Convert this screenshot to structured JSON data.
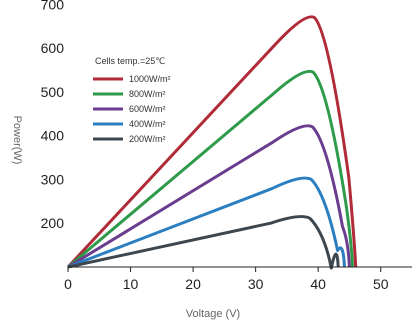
{
  "chart_data": {
    "type": "line",
    "xlabel": "Voltage (V)",
    "ylabel": "Power(W)",
    "xlim": [
      0,
      55
    ],
    "ylim": [
      100,
      710
    ],
    "x_ticks": [
      0,
      10,
      20,
      30,
      40,
      50
    ],
    "y_ticks": [
      200,
      300,
      400,
      500,
      600,
      700
    ],
    "grid": false,
    "legend_title": "Cells temp.=25℃",
    "legend_position": "top-left",
    "series": [
      {
        "name": "1000W/m²",
        "color": "#b02a37",
        "peak_voltage": 38.5,
        "peak_power": 676,
        "open_circuit_voltage": 46.0
      },
      {
        "name": "800W/m²",
        "color": "#2e9a4a",
        "peak_voltage": 38.3,
        "peak_power": 551,
        "open_circuit_voltage": 45.5
      },
      {
        "name": "600W/m²",
        "color": "#6a3d8f",
        "peak_voltage": 38.2,
        "peak_power": 426,
        "open_circuit_voltage": 45.0
      },
      {
        "name": "400W/m²",
        "color": "#2b7fc1",
        "peak_voltage": 38.0,
        "peak_power": 306,
        "open_circuit_voltage": 44.2
      },
      {
        "name": "200W/m²",
        "color": "#3d474f",
        "peak_voltage": 37.8,
        "peak_power": 217,
        "open_circuit_voltage": 43.2
      }
    ]
  }
}
